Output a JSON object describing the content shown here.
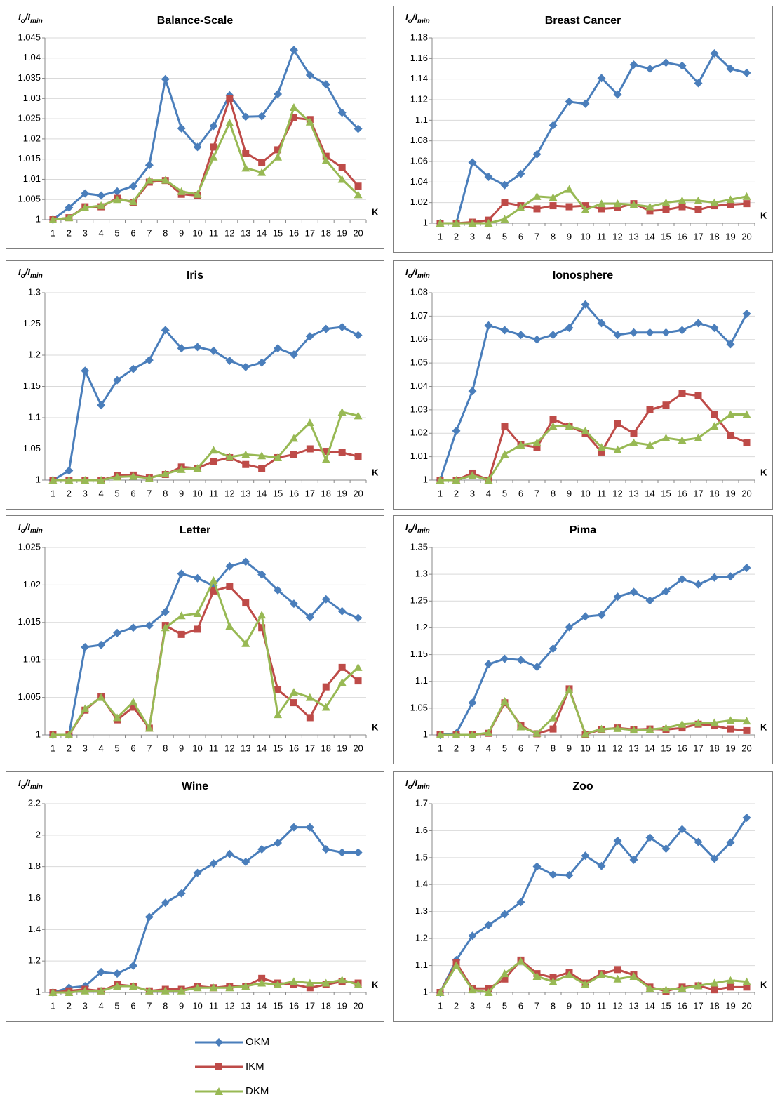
{
  "legend": [
    {
      "name": "OKM",
      "color": "#4a7ebb",
      "marker": "diamond"
    },
    {
      "name": "IKM",
      "color": "#be4b48",
      "marker": "square"
    },
    {
      "name": "DKM",
      "color": "#98b954",
      "marker": "triangle"
    }
  ],
  "chart_data": [
    {
      "type": "line",
      "title": "Balance-Scale",
      "ylabel": [
        "I",
        "o",
        "/I",
        "min"
      ],
      "xlabel": "K",
      "categories": [
        1,
        2,
        3,
        4,
        5,
        6,
        7,
        8,
        9,
        10,
        11,
        12,
        13,
        14,
        15,
        16,
        17,
        18,
        19,
        20
      ],
      "ylim": [
        1,
        1.045
      ],
      "yticks": [
        1,
        1.005,
        1.01,
        1.015,
        1.02,
        1.025,
        1.03,
        1.035,
        1.04,
        1.045
      ],
      "grid": true,
      "series": [
        {
          "values": [
            1,
            1.003,
            1.0065,
            1.006,
            1.007,
            1.0083,
            1.0135,
            1.0348,
            1.0226,
            1.018,
            1.0232,
            1.0308,
            1.0255,
            1.0256,
            1.0311,
            1.042,
            1.0358,
            1.0335,
            1.0265,
            1.0225
          ]
        },
        {
          "values": [
            1,
            1.0005,
            1.0032,
            1.0032,
            1.0053,
            1.0043,
            1.0093,
            1.0097,
            1.0063,
            1.006,
            1.018,
            1.03,
            1.0165,
            1.0142,
            1.0173,
            1.0252,
            1.0248,
            1.0157,
            1.0129,
            1.0083
          ]
        },
        {
          "values": [
            1,
            1.0005,
            1.003,
            1.0035,
            1.005,
            1.0045,
            1.0098,
            1.0098,
            1.007,
            1.0063,
            1.0155,
            1.024,
            1.0128,
            1.0117,
            1.0155,
            1.0278,
            1.0242,
            1.0147,
            1.01,
            1.0062
          ]
        }
      ]
    },
    {
      "type": "line",
      "title": "Breast Cancer",
      "ylabel": [
        "I",
        "o",
        "/I",
        "min"
      ],
      "xlabel": "K",
      "categories": [
        1,
        2,
        3,
        4,
        5,
        6,
        7,
        8,
        9,
        10,
        11,
        12,
        13,
        14,
        15,
        16,
        17,
        18,
        19,
        20
      ],
      "ylim": [
        1,
        1.18
      ],
      "yticks": [
        1,
        1.02,
        1.04,
        1.06,
        1.08,
        1.1,
        1.12,
        1.14,
        1.16,
        1.18
      ],
      "grid": true,
      "series": [
        {
          "values": [
            1,
            1,
            1.059,
            1.045,
            1.037,
            1.048,
            1.067,
            1.095,
            1.118,
            1.116,
            1.141,
            1.125,
            1.154,
            1.15,
            1.156,
            1.153,
            1.136,
            1.165,
            1.15,
            1.146
          ]
        },
        {
          "values": [
            1,
            1,
            1.001,
            1.003,
            1.02,
            1.017,
            1.014,
            1.017,
            1.016,
            1.017,
            1.014,
            1.015,
            1.019,
            1.012,
            1.013,
            1.016,
            1.013,
            1.017,
            1.018,
            1.019
          ]
        },
        {
          "values": [
            1,
            1,
            1,
            1,
            1.004,
            1.015,
            1.026,
            1.025,
            1.033,
            1.013,
            1.019,
            1.019,
            1.018,
            1.016,
            1.02,
            1.022,
            1.022,
            1.02,
            1.023,
            1.026
          ]
        }
      ]
    },
    {
      "type": "line",
      "title": "Iris",
      "ylabel": [
        "I",
        "o",
        "/I",
        "min"
      ],
      "xlabel": "K",
      "categories": [
        1,
        2,
        3,
        4,
        5,
        6,
        7,
        8,
        9,
        10,
        11,
        12,
        13,
        14,
        15,
        16,
        17,
        18,
        19,
        20
      ],
      "ylim": [
        1,
        1.3
      ],
      "yticks": [
        1,
        1.05,
        1.1,
        1.15,
        1.2,
        1.25,
        1.3
      ],
      "grid": true,
      "series": [
        {
          "values": [
            1,
            1.015,
            1.175,
            1.12,
            1.16,
            1.178,
            1.192,
            1.24,
            1.211,
            1.213,
            1.207,
            1.191,
            1.181,
            1.188,
            1.211,
            1.201,
            1.23,
            1.242,
            1.245,
            1.232
          ]
        },
        {
          "values": [
            1,
            1,
            1,
            1,
            1.007,
            1.008,
            1.004,
            1.009,
            1.021,
            1.019,
            1.03,
            1.036,
            1.025,
            1.019,
            1.036,
            1.041,
            1.05,
            1.046,
            1.044,
            1.038
          ]
        },
        {
          "values": [
            1,
            1,
            1,
            1,
            1.005,
            1.006,
            1.003,
            1.01,
            1.017,
            1.019,
            1.048,
            1.037,
            1.041,
            1.039,
            1.036,
            1.067,
            1.092,
            1.033,
            1.109,
            1.103
          ]
        }
      ]
    },
    {
      "type": "line",
      "title": "Ionosphere",
      "ylabel": [
        "I",
        "o",
        "/I",
        "min"
      ],
      "xlabel": "K",
      "categories": [
        1,
        2,
        3,
        4,
        5,
        6,
        7,
        8,
        9,
        10,
        11,
        12,
        13,
        14,
        15,
        16,
        17,
        18,
        19,
        20
      ],
      "ylim": [
        1,
        1.08
      ],
      "yticks": [
        1,
        1.01,
        1.02,
        1.03,
        1.04,
        1.05,
        1.06,
        1.07,
        1.08
      ],
      "grid": true,
      "series": [
        {
          "values": [
            1,
            1.021,
            1.038,
            1.066,
            1.064,
            1.062,
            1.06,
            1.062,
            1.065,
            1.075,
            1.067,
            1.062,
            1.063,
            1.063,
            1.063,
            1.064,
            1.067,
            1.065,
            1.058,
            1.071
          ]
        },
        {
          "values": [
            1,
            1,
            1.003,
            1,
            1.023,
            1.015,
            1.014,
            1.026,
            1.023,
            1.02,
            1.012,
            1.024,
            1.02,
            1.03,
            1.032,
            1.037,
            1.036,
            1.028,
            1.019,
            1.016
          ]
        },
        {
          "values": [
            1,
            1,
            1.002,
            1,
            1.011,
            1.015,
            1.016,
            1.023,
            1.023,
            1.021,
            1.014,
            1.013,
            1.016,
            1.015,
            1.018,
            1.017,
            1.018,
            1.023,
            1.028,
            1.028
          ]
        }
      ]
    },
    {
      "type": "line",
      "title": "Letter",
      "ylabel": [
        "I",
        "o",
        "/I",
        "min"
      ],
      "xlabel": "K",
      "categories": [
        1,
        2,
        3,
        4,
        5,
        6,
        7,
        8,
        9,
        10,
        11,
        12,
        13,
        14,
        15,
        16,
        17,
        18,
        19,
        20
      ],
      "ylim": [
        1,
        1.025
      ],
      "yticks": [
        1,
        1.005,
        1.01,
        1.015,
        1.02,
        1.025
      ],
      "grid": true,
      "series": [
        {
          "values": [
            1,
            1,
            1.0117,
            1.012,
            1.0136,
            1.0143,
            1.0146,
            1.0164,
            1.0215,
            1.0209,
            1.0199,
            1.0225,
            1.0231,
            1.0214,
            1.0193,
            1.0175,
            1.0157,
            1.0181,
            1.0165,
            1.0156
          ]
        },
        {
          "values": [
            1,
            1,
            1.0033,
            1.0051,
            1.002,
            1.0037,
            1.0009,
            1.0146,
            1.0134,
            1.0141,
            1.0192,
            1.0198,
            1.0176,
            1.0143,
            1.006,
            1.0043,
            1.0023,
            1.0064,
            1.009,
            1.0072
          ]
        },
        {
          "values": [
            1,
            1,
            1.0035,
            1.005,
            1.0023,
            1.0044,
            1.0009,
            1.0143,
            1.0159,
            1.0162,
            1.0206,
            1.0145,
            1.0122,
            1.016,
            1.0027,
            1.0057,
            1.005,
            1.0037,
            1.007,
            1.009
          ]
        }
      ]
    },
    {
      "type": "line",
      "title": "Pima",
      "ylabel": [
        "I",
        "o",
        "/I",
        "min"
      ],
      "xlabel": "K",
      "categories": [
        1,
        2,
        3,
        4,
        5,
        6,
        7,
        8,
        9,
        10,
        11,
        12,
        13,
        14,
        15,
        16,
        17,
        18,
        19,
        20
      ],
      "ylim": [
        1,
        1.35
      ],
      "yticks": [
        1,
        1.05,
        1.1,
        1.15,
        1.2,
        1.25,
        1.3,
        1.35
      ],
      "grid": true,
      "series": [
        {
          "values": [
            1,
            1.003,
            1.06,
            1.132,
            1.142,
            1.14,
            1.127,
            1.161,
            1.201,
            1.221,
            1.224,
            1.258,
            1.267,
            1.251,
            1.268,
            1.291,
            1.281,
            1.294,
            1.296,
            1.312
          ]
        },
        {
          "values": [
            1,
            1,
            1,
            1.003,
            1.06,
            1.018,
            1.002,
            1.011,
            1.086,
            1.001,
            1.01,
            1.013,
            1.01,
            1.011,
            1.01,
            1.013,
            1.02,
            1.017,
            1.011,
            1.008
          ]
        },
        {
          "values": [
            1,
            1,
            1,
            1.004,
            1.063,
            1.015,
            1.003,
            1.032,
            1.084,
            1.002,
            1.011,
            1.012,
            1.009,
            1.01,
            1.013,
            1.02,
            1.022,
            1.023,
            1.027,
            1.026
          ]
        }
      ]
    },
    {
      "type": "line",
      "title": "Wine",
      "ylabel": [
        "I",
        "o",
        "/I",
        "min"
      ],
      "xlabel": "K",
      "categories": [
        1,
        2,
        3,
        4,
        5,
        6,
        7,
        8,
        9,
        10,
        11,
        12,
        13,
        14,
        15,
        16,
        17,
        18,
        19,
        20
      ],
      "ylim": [
        1,
        2.2
      ],
      "yticks": [
        1,
        1.2,
        1.4,
        1.6,
        1.8,
        2,
        2.2
      ],
      "grid": true,
      "series": [
        {
          "values": [
            1,
            1.03,
            1.04,
            1.13,
            1.12,
            1.17,
            1.48,
            1.57,
            1.63,
            1.76,
            1.82,
            1.88,
            1.83,
            1.91,
            1.95,
            2.05,
            2.05,
            1.91,
            1.89,
            1.89
          ]
        },
        {
          "values": [
            1,
            1.01,
            1.02,
            1.01,
            1.05,
            1.04,
            1.01,
            1.02,
            1.02,
            1.04,
            1.03,
            1.04,
            1.04,
            1.09,
            1.06,
            1.05,
            1.03,
            1.05,
            1.07,
            1.06
          ]
        },
        {
          "values": [
            1,
            1,
            1.01,
            1.01,
            1.04,
            1.04,
            1.01,
            1.01,
            1.01,
            1.03,
            1.03,
            1.03,
            1.04,
            1.06,
            1.05,
            1.07,
            1.06,
            1.06,
            1.08,
            1.05
          ]
        }
      ]
    },
    {
      "type": "line",
      "title": "Zoo",
      "ylabel": [
        "I",
        "o",
        "/I",
        "min"
      ],
      "xlabel": "K",
      "categories": [
        1,
        2,
        3,
        4,
        5,
        6,
        7,
        8,
        9,
        10,
        11,
        12,
        13,
        14,
        15,
        16,
        17,
        18,
        19,
        20
      ],
      "ylim": [
        1,
        1.7
      ],
      "yticks": [
        1,
        1.1,
        1.2,
        1.3,
        1.4,
        1.5,
        1.6,
        1.7
      ],
      "grid": true,
      "series": [
        {
          "values": [
            1,
            1.12,
            1.21,
            1.25,
            1.29,
            1.335,
            1.467,
            1.437,
            1.435,
            1.507,
            1.469,
            1.562,
            1.492,
            1.574,
            1.533,
            1.605,
            1.558,
            1.496,
            1.556,
            1.648
          ]
        },
        {
          "values": [
            1,
            1.11,
            1.015,
            1.015,
            1.05,
            1.12,
            1.07,
            1.055,
            1.075,
            1.035,
            1.07,
            1.085,
            1.065,
            1.02,
            1.005,
            1.02,
            1.025,
            1.01,
            1.02,
            1.02
          ]
        },
        {
          "values": [
            1,
            1.1,
            1.01,
            1,
            1.07,
            1.115,
            1.06,
            1.04,
            1.065,
            1.03,
            1.065,
            1.05,
            1.06,
            1.015,
            1.01,
            1.015,
            1.025,
            1.035,
            1.045,
            1.04
          ]
        }
      ]
    }
  ]
}
